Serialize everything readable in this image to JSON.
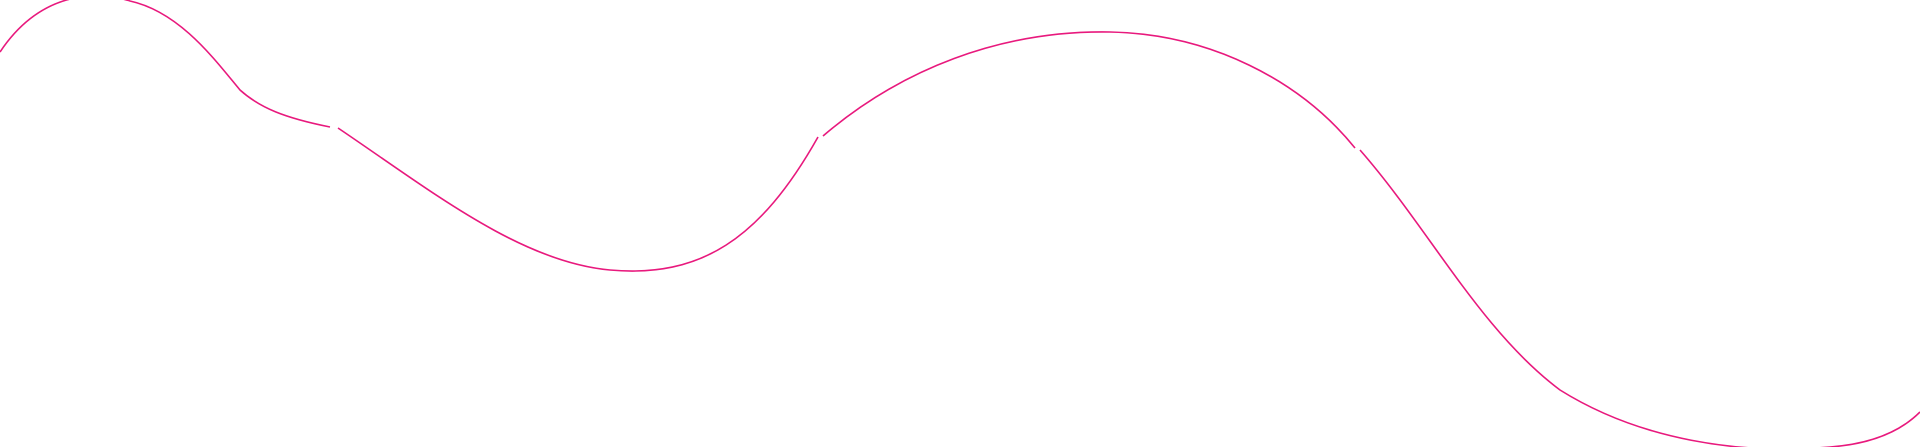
{
  "decoration": {
    "type": "wavy-line",
    "stroke_color": "#e8197d",
    "background_color": "#ffffff",
    "segments": 4
  }
}
